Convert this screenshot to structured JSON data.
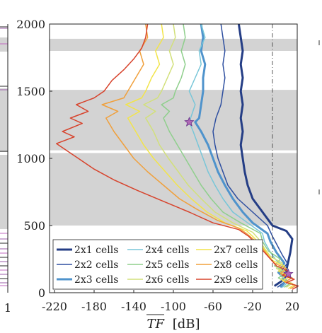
{
  "chart_data": {
    "type": "line",
    "xlabel": "TF [dB]",
    "xlabel_overline": "TF",
    "xlabel_unit": "[dB]",
    "ylabel": "",
    "xlim": [
      -225,
      25
    ],
    "ylim": [
      0,
      2000
    ],
    "xticks": [
      -220,
      -180,
      -140,
      -100,
      -60,
      -20,
      20
    ],
    "yticks": [
      0,
      500,
      1000,
      1500,
      2000
    ],
    "grid": false,
    "legend_position": "bottom",
    "stopbands": [
      [
        1800,
        1890
      ],
      [
        1060,
        1510
      ],
      [
        500,
        1040
      ]
    ],
    "reference_line_x": 0,
    "left_panel_tick": "1",
    "series": [
      {
        "name": "2x1 cells",
        "color": "#243d85",
        "width": 3.0,
        "points": [
          [
            2,
            50
          ],
          [
            12,
            100
          ],
          [
            15,
            200
          ],
          [
            18,
            300
          ],
          [
            20,
            400
          ],
          [
            14,
            460
          ],
          [
            0,
            500
          ],
          [
            -10,
            600
          ],
          [
            -20,
            700
          ],
          [
            -25,
            800
          ],
          [
            -28,
            900
          ],
          [
            -30,
            1000
          ],
          [
            -32,
            1100
          ],
          [
            -30,
            1200
          ],
          [
            -32,
            1300
          ],
          [
            -30,
            1400
          ],
          [
            -32,
            1500
          ],
          [
            -30,
            1600
          ],
          [
            -32,
            1700
          ],
          [
            -30,
            1800
          ],
          [
            -32,
            1900
          ],
          [
            -34,
            2000
          ]
        ]
      },
      {
        "name": "2x2 cells",
        "color": "#2e4fa0",
        "width": 1.5,
        "points": [
          [
            5,
            40
          ],
          [
            12,
            80
          ],
          [
            8,
            150
          ],
          [
            15,
            220
          ],
          [
            10,
            280
          ],
          [
            5,
            350
          ],
          [
            0,
            420
          ],
          [
            -5,
            500
          ],
          [
            -20,
            600
          ],
          [
            -35,
            700
          ],
          [
            -45,
            800
          ],
          [
            -50,
            900
          ],
          [
            -55,
            1000
          ],
          [
            -58,
            1100
          ],
          [
            -60,
            1200
          ],
          [
            -57,
            1300
          ],
          [
            -52,
            1400
          ],
          [
            -50,
            1500
          ],
          [
            -48,
            1600
          ],
          [
            -50,
            1700
          ],
          [
            -48,
            1800
          ],
          [
            -50,
            1900
          ],
          [
            -52,
            2000
          ]
        ]
      },
      {
        "name": "2x3 cells",
        "color": "#4f93cc",
        "width": 3.0,
        "points": [
          [
            8,
            40
          ],
          [
            14,
            90
          ],
          [
            6,
            150
          ],
          [
            12,
            220
          ],
          [
            4,
            300
          ],
          [
            -2,
            380
          ],
          [
            -5,
            440
          ],
          [
            -20,
            520
          ],
          [
            -30,
            600
          ],
          [
            -40,
            700
          ],
          [
            -48,
            800
          ],
          [
            -55,
            900
          ],
          [
            -60,
            1000
          ],
          [
            -65,
            1100
          ],
          [
            -72,
            1200
          ],
          [
            -78,
            1270
          ],
          [
            -74,
            1300
          ],
          [
            -72,
            1400
          ],
          [
            -70,
            1500
          ],
          [
            -70,
            1600
          ],
          [
            -68,
            1700
          ],
          [
            -72,
            1800
          ],
          [
            -70,
            1900
          ],
          [
            -72,
            2000
          ]
        ]
      },
      {
        "name": "2x4 cells",
        "color": "#78c6d8",
        "width": 1.5,
        "points": [
          [
            10,
            40
          ],
          [
            16,
            80
          ],
          [
            8,
            130
          ],
          [
            14,
            180
          ],
          [
            4,
            240
          ],
          [
            -2,
            300
          ],
          [
            -8,
            380
          ],
          [
            -10,
            440
          ],
          [
            -25,
            520
          ],
          [
            -40,
            600
          ],
          [
            -50,
            700
          ],
          [
            -58,
            800
          ],
          [
            -65,
            900
          ],
          [
            -70,
            1000
          ],
          [
            -75,
            1100
          ],
          [
            -80,
            1200
          ],
          [
            -84,
            1270
          ],
          [
            -78,
            1400
          ],
          [
            -84,
            1500
          ],
          [
            -78,
            1600
          ],
          [
            -72,
            1700
          ],
          [
            -74,
            1800
          ],
          [
            -68,
            1900
          ],
          [
            -72,
            2000
          ]
        ]
      },
      {
        "name": "2x5 cells",
        "color": "#8fcf8c",
        "width": 1.5,
        "points": [
          [
            12,
            40
          ],
          [
            18,
            70
          ],
          [
            6,
            110
          ],
          [
            14,
            150
          ],
          [
            2,
            200
          ],
          [
            8,
            250
          ],
          [
            -4,
            310
          ],
          [
            -10,
            380
          ],
          [
            -12,
            440
          ],
          [
            -32,
            520
          ],
          [
            -50,
            600
          ],
          [
            -62,
            700
          ],
          [
            -72,
            800
          ],
          [
            -80,
            900
          ],
          [
            -88,
            1000
          ],
          [
            -96,
            1100
          ],
          [
            -104,
            1200
          ],
          [
            -110,
            1300
          ],
          [
            -104,
            1350
          ],
          [
            -112,
            1400
          ],
          [
            -100,
            1450
          ],
          [
            -98,
            1500
          ],
          [
            -92,
            1600
          ],
          [
            -88,
            1700
          ],
          [
            -92,
            1800
          ],
          [
            -88,
            1900
          ],
          [
            -90,
            2000
          ]
        ]
      },
      {
        "name": "2x6 cells",
        "color": "#d2e07a",
        "width": 1.5,
        "points": [
          [
            14,
            40
          ],
          [
            20,
            70
          ],
          [
            8,
            100
          ],
          [
            16,
            140
          ],
          [
            4,
            180
          ],
          [
            10,
            220
          ],
          [
            -2,
            270
          ],
          [
            -8,
            330
          ],
          [
            -14,
            400
          ],
          [
            -20,
            450
          ],
          [
            -40,
            520
          ],
          [
            -58,
            600
          ],
          [
            -72,
            700
          ],
          [
            -85,
            800
          ],
          [
            -95,
            900
          ],
          [
            -105,
            1000
          ],
          [
            -114,
            1100
          ],
          [
            -120,
            1200
          ],
          [
            -128,
            1300
          ],
          [
            -118,
            1350
          ],
          [
            -130,
            1400
          ],
          [
            -116,
            1450
          ],
          [
            -112,
            1500
          ],
          [
            -106,
            1600
          ],
          [
            -100,
            1700
          ],
          [
            -104,
            1800
          ],
          [
            -98,
            1900
          ],
          [
            -100,
            2000
          ]
        ]
      },
      {
        "name": "2x7 cells",
        "color": "#f2e44a",
        "width": 1.5,
        "points": [
          [
            16,
            30
          ],
          [
            22,
            60
          ],
          [
            10,
            90
          ],
          [
            18,
            120
          ],
          [
            6,
            160
          ],
          [
            12,
            200
          ],
          [
            0,
            240
          ],
          [
            -6,
            300
          ],
          [
            -12,
            360
          ],
          [
            -20,
            420
          ],
          [
            -26,
            460
          ],
          [
            -48,
            520
          ],
          [
            -66,
            600
          ],
          [
            -82,
            700
          ],
          [
            -96,
            800
          ],
          [
            -108,
            900
          ],
          [
            -120,
            1000
          ],
          [
            -130,
            1100
          ],
          [
            -138,
            1200
          ],
          [
            -146,
            1300
          ],
          [
            -134,
            1350
          ],
          [
            -148,
            1400
          ],
          [
            -132,
            1450
          ],
          [
            -128,
            1500
          ],
          [
            -122,
            1600
          ],
          [
            -114,
            1700
          ],
          [
            -118,
            1800
          ],
          [
            -110,
            1900
          ],
          [
            -112,
            2000
          ]
        ]
      },
      {
        "name": "2x8 cells",
        "color": "#f0a03c",
        "width": 1.5,
        "points": [
          [
            18,
            30
          ],
          [
            24,
            55
          ],
          [
            12,
            80
          ],
          [
            20,
            110
          ],
          [
            8,
            140
          ],
          [
            14,
            180
          ],
          [
            2,
            220
          ],
          [
            -4,
            270
          ],
          [
            -10,
            330
          ],
          [
            -18,
            390
          ],
          [
            -26,
            440
          ],
          [
            -34,
            480
          ],
          [
            -56,
            540
          ],
          [
            -76,
            620
          ],
          [
            -94,
            700
          ],
          [
            -110,
            800
          ],
          [
            -126,
            900
          ],
          [
            -140,
            1000
          ],
          [
            -150,
            1100
          ],
          [
            -160,
            1200
          ],
          [
            -168,
            1300
          ],
          [
            -156,
            1350
          ],
          [
            -172,
            1400
          ],
          [
            -150,
            1450
          ],
          [
            -146,
            1500
          ],
          [
            -138,
            1600
          ],
          [
            -130,
            1700
          ],
          [
            -134,
            1800
          ],
          [
            -126,
            1900
          ],
          [
            -128,
            2000
          ]
        ]
      },
      {
        "name": "2x9 cells",
        "color": "#d7432c",
        "width": 1.5,
        "points": [
          [
            20,
            25
          ],
          [
            26,
            50
          ],
          [
            14,
            75
          ],
          [
            22,
            100
          ],
          [
            10,
            130
          ],
          [
            16,
            160
          ],
          [
            4,
            200
          ],
          [
            -2,
            250
          ],
          [
            -8,
            300
          ],
          [
            -16,
            360
          ],
          [
            -24,
            420
          ],
          [
            -34,
            470
          ],
          [
            -60,
            520
          ],
          [
            -84,
            600
          ],
          [
            -110,
            680
          ],
          [
            -136,
            760
          ],
          [
            -160,
            840
          ],
          [
            -180,
            920
          ],
          [
            -196,
            1000
          ],
          [
            -208,
            1060
          ],
          [
            -218,
            1110
          ],
          [
            -200,
            1160
          ],
          [
            -212,
            1200
          ],
          [
            -192,
            1260
          ],
          [
            -204,
            1300
          ],
          [
            -186,
            1350
          ],
          [
            -198,
            1400
          ],
          [
            -180,
            1450
          ],
          [
            -170,
            1500
          ],
          [
            -162,
            1580
          ],
          [
            -150,
            1660
          ],
          [
            -140,
            1740
          ],
          [
            -132,
            1820
          ],
          [
            -128,
            1900
          ],
          [
            -126,
            2000
          ]
        ]
      }
    ],
    "markers": [
      {
        "x": -84,
        "y": 1270,
        "shape": "star",
        "color": "#b06ab5"
      },
      {
        "x": 16,
        "y": 140,
        "shape": "star",
        "color": "#b06ab5"
      }
    ]
  }
}
